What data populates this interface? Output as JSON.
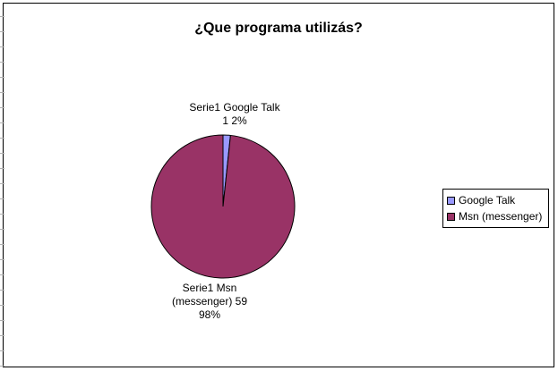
{
  "chart_data": {
    "type": "pie",
    "title": "¿Que programa utilizás?",
    "categories": [
      "Google Talk",
      "Msn (messenger)"
    ],
    "series": [
      {
        "name": "Serie1",
        "values": [
          1,
          59
        ]
      }
    ],
    "colors": [
      "#9999ff",
      "#993366"
    ],
    "legend_position": "right",
    "data_labels": [
      [
        "Serie1 Google Talk",
        "1 2%"
      ],
      [
        "Serie1 Msn",
        "(messenger) 59",
        "98%"
      ]
    ]
  }
}
